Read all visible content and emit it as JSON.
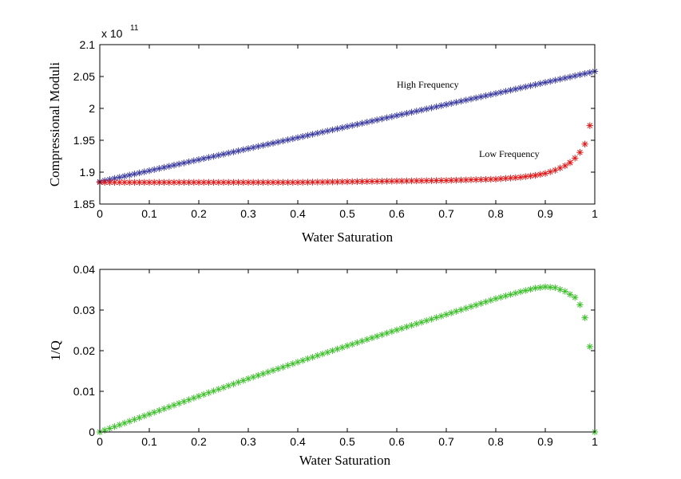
{
  "chart_data": [
    {
      "type": "scatter",
      "xlabel": "Water Saturation",
      "ylabel": "Compressional Moduli",
      "exponent_label": "x 10",
      "exponent_power": "11",
      "xlim": [
        0,
        1
      ],
      "ylim": [
        1.85,
        2.1
      ],
      "x_ticks": [
        "0",
        "0.1",
        "0.2",
        "0.3",
        "0.4",
        "0.5",
        "0.6",
        "0.7",
        "0.8",
        "0.9",
        "1"
      ],
      "y_ticks": [
        "1.85",
        "1.9",
        "1.95",
        "2",
        "2.05",
        "2.1"
      ],
      "grid": false,
      "marker": "asterisk",
      "series": [
        {
          "name": "High Frequency",
          "color": "#3a3aa0",
          "x_start": 0,
          "x_end": 1,
          "n": 101,
          "y_start": 1.885,
          "y_end": 2.058
        },
        {
          "name": "Low Frequency",
          "color": "#e01818",
          "points": [
            [
              0,
              1.884
            ],
            [
              0.1,
              1.884
            ],
            [
              0.2,
              1.884
            ],
            [
              0.3,
              1.884
            ],
            [
              0.4,
              1.884
            ],
            [
              0.5,
              1.885
            ],
            [
              0.6,
              1.886
            ],
            [
              0.7,
              1.887
            ],
            [
              0.75,
              1.888
            ],
            [
              0.8,
              1.889
            ],
            [
              0.85,
              1.892
            ],
            [
              0.88,
              1.895
            ],
            [
              0.9,
              1.898
            ],
            [
              0.92,
              1.903
            ],
            [
              0.94,
              1.91
            ],
            [
              0.95,
              1.915
            ],
            [
              0.96,
              1.922
            ],
            [
              0.97,
              1.931
            ],
            [
              0.98,
              1.944
            ],
            [
              0.99,
              1.973
            ]
          ]
        }
      ],
      "annotations": [
        "High Frequency",
        "Low Frequency"
      ]
    },
    {
      "type": "scatter",
      "xlabel": "Water Saturation",
      "ylabel": "1/Q",
      "xlim": [
        0,
        1
      ],
      "ylim": [
        0,
        0.04
      ],
      "x_ticks": [
        "0",
        "0.1",
        "0.2",
        "0.3",
        "0.4",
        "0.5",
        "0.6",
        "0.7",
        "0.8",
        "0.9",
        "1"
      ],
      "y_ticks": [
        "0",
        "0.01",
        "0.02",
        "0.03",
        "0.04"
      ],
      "grid": false,
      "marker": "asterisk",
      "series": [
        {
          "color": "#3cbf2a",
          "points": [
            [
              0,
              0.0
            ],
            [
              0.1,
              0.0044
            ],
            [
              0.2,
              0.0088
            ],
            [
              0.3,
              0.0131
            ],
            [
              0.4,
              0.0172
            ],
            [
              0.5,
              0.0212
            ],
            [
              0.6,
              0.0251
            ],
            [
              0.7,
              0.0289
            ],
            [
              0.8,
              0.0328
            ],
            [
              0.85,
              0.0345
            ],
            [
              0.88,
              0.0354
            ],
            [
              0.9,
              0.0357
            ],
            [
              0.92,
              0.0355
            ],
            [
              0.94,
              0.0346
            ],
            [
              0.96,
              0.0331
            ],
            [
              0.97,
              0.0313
            ],
            [
              0.98,
              0.0281
            ],
            [
              0.99,
              0.021
            ],
            [
              1.0,
              0.0
            ]
          ]
        }
      ]
    }
  ]
}
